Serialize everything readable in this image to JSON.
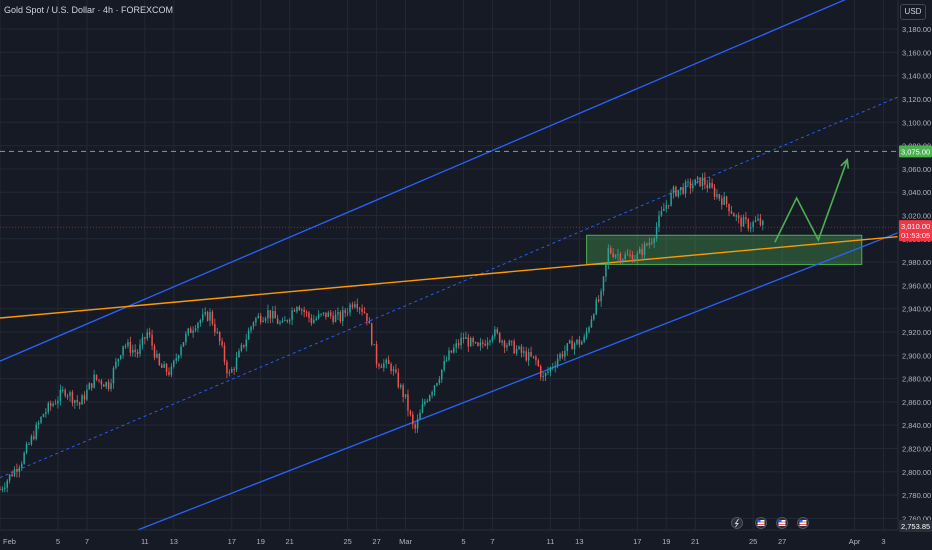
{
  "header": {
    "title": "Gold Spot / U.S. Dollar · 4h · FOREXCOM",
    "currency": "USD"
  },
  "chart_data": {
    "type": "candlestick",
    "ylim": [
      2750,
      3205
    ],
    "y_ticks": [
      2760,
      2780,
      2800,
      2820,
      2840,
      2860,
      2880,
      2900,
      2920,
      2940,
      2960,
      2980,
      3000,
      3020,
      3040,
      3060,
      3080,
      3100,
      3120,
      3140,
      3160,
      3180
    ],
    "y_tick_labels": [
      "2,760.00",
      "2,780.00",
      "2,800.00",
      "2,820.00",
      "2,840.00",
      "2,860.00",
      "2,880.00",
      "2,900.00",
      "2,920.00",
      "2,940.00",
      "2,960.00",
      "2,980.00",
      "3,000.00",
      "3,020.00",
      "3,040.00",
      "3,060.00",
      "3,080.00",
      "3,100.00",
      "3,120.00",
      "3,140.00",
      "3,160.00",
      "3,180.00"
    ],
    "x_range_days": [
      0,
      62
    ],
    "x_ticks": [
      {
        "day": 0,
        "label": "Feb"
      },
      {
        "day": 4,
        "label": "5"
      },
      {
        "day": 6,
        "label": "7"
      },
      {
        "day": 10,
        "label": "11"
      },
      {
        "day": 12,
        "label": "13"
      },
      {
        "day": 16,
        "label": "17"
      },
      {
        "day": 18,
        "label": "19"
      },
      {
        "day": 20,
        "label": "21"
      },
      {
        "day": 24,
        "label": "25"
      },
      {
        "day": 26,
        "label": "27"
      },
      {
        "day": 28,
        "label": "Mar"
      },
      {
        "day": 32,
        "label": "5"
      },
      {
        "day": 34,
        "label": "7"
      },
      {
        "day": 38,
        "label": "11"
      },
      {
        "day": 40,
        "label": "13"
      },
      {
        "day": 44,
        "label": "17"
      },
      {
        "day": 46,
        "label": "19"
      },
      {
        "day": 48,
        "label": "21"
      },
      {
        "day": 52,
        "label": "25"
      },
      {
        "day": 54,
        "label": "27"
      },
      {
        "day": 59,
        "label": "Apr"
      },
      {
        "day": 61,
        "label": "3"
      }
    ],
    "close_path": [
      [
        0.0,
        2785
      ],
      [
        1.5,
        2810
      ],
      [
        3.0,
        2850
      ],
      [
        4.5,
        2870
      ],
      [
        5.5,
        2858
      ],
      [
        6.5,
        2880
      ],
      [
        7.5,
        2875
      ],
      [
        8.5,
        2910
      ],
      [
        9.5,
        2902
      ],
      [
        10.2,
        2920
      ],
      [
        11.0,
        2890
      ],
      [
        11.8,
        2885
      ],
      [
        12.5,
        2910
      ],
      [
        13.5,
        2928
      ],
      [
        14.5,
        2935
      ],
      [
        15.2,
        2910
      ],
      [
        15.8,
        2882
      ],
      [
        16.5,
        2900
      ],
      [
        17.5,
        2930
      ],
      [
        18.5,
        2937
      ],
      [
        19.5,
        2925
      ],
      [
        20.5,
        2945
      ],
      [
        21.5,
        2930
      ],
      [
        22.5,
        2935
      ],
      [
        23.5,
        2932
      ],
      [
        24.5,
        2948
      ],
      [
        25.3,
        2935
      ],
      [
        26.0,
        2895
      ],
      [
        27.0,
        2890
      ],
      [
        28.0,
        2862
      ],
      [
        28.6,
        2834
      ],
      [
        29.3,
        2860
      ],
      [
        30.2,
        2880
      ],
      [
        31.0,
        2900
      ],
      [
        32.0,
        2915
      ],
      [
        33.0,
        2905
      ],
      [
        34.0,
        2920
      ],
      [
        35.0,
        2910
      ],
      [
        36.0,
        2902
      ],
      [
        37.0,
        2895
      ],
      [
        37.5,
        2880
      ],
      [
        38.5,
        2898
      ],
      [
        39.5,
        2910
      ],
      [
        40.3,
        2912
      ],
      [
        41.0,
        2940
      ],
      [
        41.5,
        2950
      ],
      [
        42.0,
        2990
      ],
      [
        43.0,
        2985
      ],
      [
        44.0,
        2985
      ],
      [
        45.0,
        3000
      ],
      [
        45.8,
        3025
      ],
      [
        46.5,
        3040
      ],
      [
        47.5,
        3045
      ],
      [
        48.5,
        3050
      ],
      [
        49.3,
        3040
      ],
      [
        50.2,
        3030
      ],
      [
        51.0,
        3015
      ],
      [
        51.8,
        3012
      ],
      [
        52.3,
        3015
      ],
      [
        52.8,
        3010
      ]
    ],
    "vol_seed": 7,
    "annotations": {
      "resistance_line": 3075,
      "resistance_label": "3,075.00",
      "current_price": 3010.0,
      "current_price_label": "3,010.00",
      "countdown_label": "01:53:05",
      "low_label": "2,753.85",
      "demand_zone": {
        "price_low": 2978,
        "price_high": 3003,
        "day_start": 40.5,
        "day_end": 59.5
      },
      "channel_lower": [
        [
          9.5,
          2750
        ],
        [
          63,
          3010
        ]
      ],
      "channel_upper": [
        [
          0,
          2895
        ],
        [
          63,
          3230
        ]
      ],
      "channel_mid": [
        [
          0,
          2795
        ],
        [
          63,
          3127
        ]
      ],
      "trendline": [
        [
          0,
          2932
        ],
        [
          63,
          3003
        ]
      ],
      "projection": [
        [
          53.5,
          2997
        ],
        [
          55.0,
          3035
        ],
        [
          56.5,
          2999
        ],
        [
          58.5,
          3068
        ]
      ]
    },
    "event_icons": [
      "lightning-icon",
      "us-flag-icon",
      "us-flag-icon",
      "us-flag-icon"
    ],
    "colors": {
      "up": "#26a69a",
      "down": "#ef5350",
      "channel": "#2962ff",
      "trendline": "#ff9800",
      "zone_fill": "#4caf50",
      "projection": "#4caf50",
      "resistance": "#4caf50",
      "price_badge": "#f23645"
    }
  }
}
